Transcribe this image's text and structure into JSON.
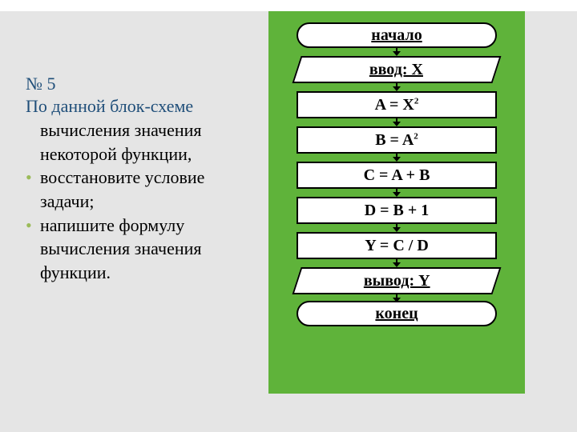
{
  "task": {
    "number": "№ 5",
    "heading_l1": "По данной блок-схеме",
    "body_p1": "вычисления значения некоторой функции,",
    "bullet1": "восстановите условие задачи;",
    "bullet2": "напишите формулу вычисления значения функции."
  },
  "flowchart": {
    "type": "flowchart",
    "panel_color": "#5fb33a",
    "node_bg": "#ffffff",
    "node_border": "#000000",
    "font_size": 20,
    "nodes": [
      {
        "id": "start",
        "shape": "terminator",
        "label": "начало"
      },
      {
        "id": "in",
        "shape": "io",
        "label": "ввод: Х"
      },
      {
        "id": "a",
        "shape": "process",
        "label": "A = X²",
        "html": "A = X<sup>2</sup>"
      },
      {
        "id": "b",
        "shape": "process",
        "label": "B = A²",
        "html": "B = A<sup>2</sup>"
      },
      {
        "id": "c",
        "shape": "process",
        "label": "C = A + B"
      },
      {
        "id": "d",
        "shape": "process",
        "label": "D = B + 1"
      },
      {
        "id": "y",
        "shape": "process",
        "label": "Y = C / D"
      },
      {
        "id": "out",
        "shape": "io",
        "label": "вывод: Y"
      },
      {
        "id": "end",
        "shape": "terminator",
        "label": "конец"
      }
    ],
    "edges": [
      [
        "start",
        "in"
      ],
      [
        "in",
        "a"
      ],
      [
        "a",
        "b"
      ],
      [
        "b",
        "c"
      ],
      [
        "c",
        "d"
      ],
      [
        "d",
        "y"
      ],
      [
        "y",
        "out"
      ],
      [
        "out",
        "end"
      ]
    ]
  },
  "colors": {
    "slide_bg": "#e5e5e5",
    "heading_color": "#1f4e79",
    "bullet_color": "#9bbb59"
  }
}
